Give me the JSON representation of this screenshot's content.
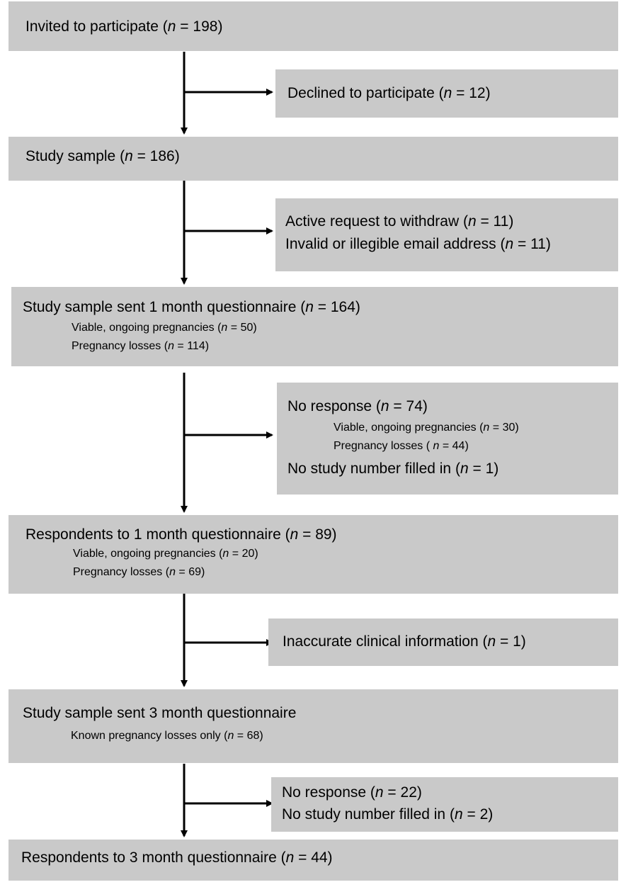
{
  "boxes": {
    "invited": {
      "line1": {
        "pre": "Invited to participate (",
        "var": "n",
        "post": " = 198)"
      }
    },
    "declined": {
      "line1": {
        "pre": "Declined to participate (",
        "var": "n",
        "post": " = 12)"
      }
    },
    "study_sample": {
      "line1": {
        "pre": "Study sample (",
        "var": "n",
        "post": " = 186)"
      }
    },
    "withdraw": {
      "line1": {
        "pre": "Active request to withdraw (",
        "var": "n",
        "post": " = 11)"
      },
      "line2": {
        "pre": "Invalid or illegible email address (",
        "var": "n",
        "post": " = 11)"
      }
    },
    "sent_1m": {
      "line1": {
        "pre": "Study sample sent 1 month questionnaire (",
        "var": "n",
        "post": " = 164)"
      },
      "sub1": {
        "pre": "Viable, ongoing pregnancies (",
        "var": "n",
        "post": " = 50)"
      },
      "sub2": {
        "pre": "Pregnancy losses (",
        "var": "n",
        "post": " = 114)"
      }
    },
    "no_response_1m": {
      "line1": {
        "pre": "No response (",
        "var": "n",
        "post": " = 74)"
      },
      "sub1": {
        "pre": "Viable, ongoing pregnancies (",
        "var": "n",
        "post": " = 30)"
      },
      "sub2": {
        "pre": "Pregnancy losses ( ",
        "var": "n",
        "post": " = 44)"
      },
      "line2": {
        "pre": "No study number filled in (",
        "var": "n",
        "post": " = 1)"
      }
    },
    "resp_1m": {
      "line1": {
        "pre": "Respondents to 1 month questionnaire (",
        "var": "n",
        "post": " = 89)"
      },
      "sub1": {
        "pre": "Viable, ongoing pregnancies (",
        "var": "n",
        "post": " = 20)"
      },
      "sub2": {
        "pre": "Pregnancy losses (",
        "var": "n",
        "post": " = 69)"
      }
    },
    "inaccurate": {
      "line1": {
        "pre": "Inaccurate clinical information (",
        "var": "n",
        "post": " = 1)"
      }
    },
    "sent_3m": {
      "line1": {
        "pre": "Study sample sent 3 month questionnaire",
        "var": "",
        "post": ""
      },
      "sub1": {
        "pre": "Known pregnancy losses only (",
        "var": "n",
        "post": " = 68)"
      }
    },
    "no_response_3m": {
      "line1": {
        "pre": "No response (",
        "var": "n",
        "post": " = 22)"
      },
      "line2": {
        "pre": "No study number filled in (",
        "var": "n",
        "post": " = 2)"
      }
    },
    "resp_3m": {
      "line1": {
        "pre": "Respondents to 3 month questionnaire  (",
        "var": "n",
        "post": " = 44)"
      }
    }
  },
  "colors": {
    "box_fill": "#c9c9c9",
    "arrow": "#000000",
    "background": "#ffffff"
  }
}
